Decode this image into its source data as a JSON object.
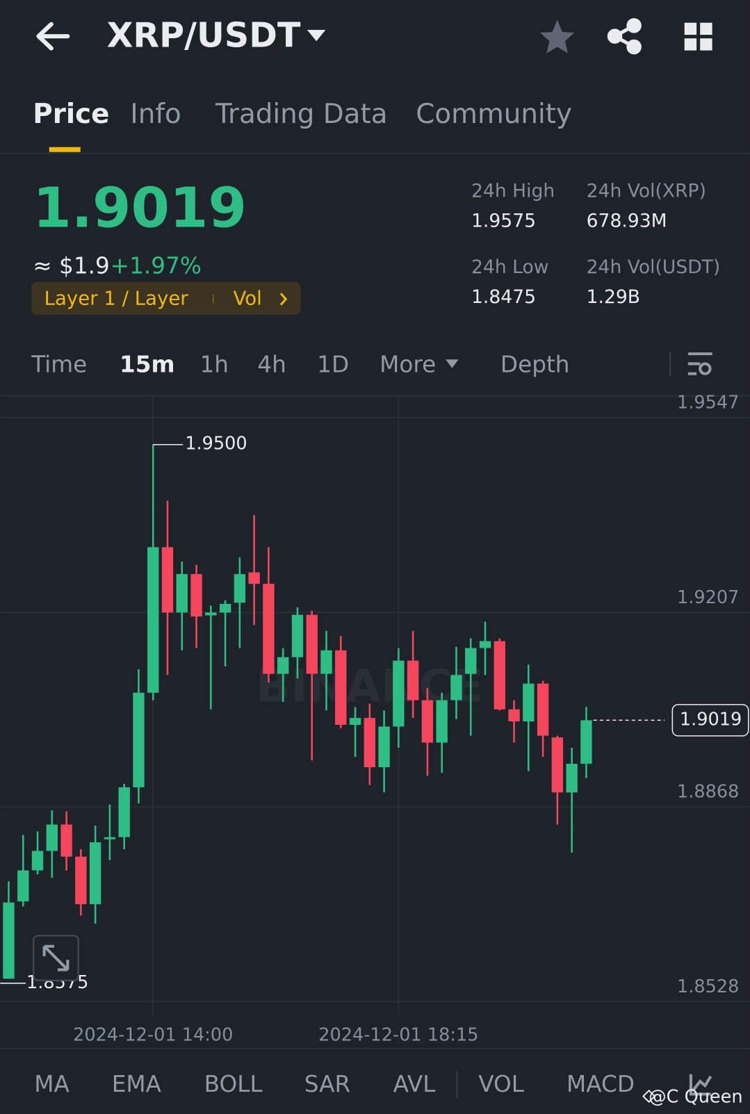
{
  "header": {
    "title": "XRP/USDT"
  },
  "tabs": {
    "items": [
      "Price",
      "Info",
      "Trading Data",
      "Community"
    ],
    "active": 0
  },
  "ticker": {
    "price": "1.9019",
    "approx": "≈ $1.9",
    "change": "+1.97%",
    "tag": "Layer 1 / Layer",
    "tag2": "Vol"
  },
  "stats": [
    {
      "label": "24h High",
      "value": "1.9575"
    },
    {
      "label": "24h Vol(XRP)",
      "value": "678.93M"
    },
    {
      "label": "24h Low",
      "value": "1.8475"
    },
    {
      "label": "24h Vol(USDT)",
      "value": "1.29B"
    }
  ],
  "intervals": {
    "items": [
      "Time",
      "15m",
      "1h",
      "4h",
      "1D",
      "More",
      "Depth"
    ],
    "active": 1
  },
  "chart_data": {
    "type": "candlestick",
    "up_color": "#2ebd85",
    "down_color": "#f6465d",
    "categories": [
      null,
      null,
      null,
      null,
      null,
      null,
      null,
      null,
      null,
      null,
      "2024-12-01 14:00",
      null,
      null,
      null,
      null,
      null,
      null,
      null,
      null,
      null,
      null,
      null,
      null,
      null,
      null,
      null,
      null,
      "2024-12-01 18:15",
      null,
      null,
      null,
      null,
      null,
      null,
      null,
      null,
      null,
      null,
      null,
      null,
      null
    ],
    "open": [
      1.8568,
      1.8703,
      1.8757,
      1.8791,
      1.8837,
      1.8781,
      1.8698,
      1.8812,
      1.8815,
      1.8902,
      1.9067,
      1.9321,
      1.9207,
      1.9274,
      1.9202,
      1.9207,
      1.9224,
      1.9277,
      1.9257,
      1.91,
      1.9129,
      1.9203,
      1.91,
      1.9141,
      1.9011,
      1.9023,
      1.8937,
      1.9008,
      1.9123,
      1.9054,
      1.898,
      1.9054,
      1.91,
      1.9145,
      1.9157,
      1.9038,
      1.9017,
      1.9083,
      1.8989,
      1.8893,
      1.8943
    ],
    "high": [
      1.8738,
      1.8819,
      1.8825,
      1.8862,
      1.886,
      1.8794,
      1.8835,
      1.8872,
      1.8908,
      1.9108,
      1.95,
      1.9402,
      1.9296,
      1.929,
      1.9219,
      1.9228,
      1.9303,
      1.9377,
      1.9321,
      1.9145,
      1.9216,
      1.921,
      1.9175,
      1.9166,
      1.9042,
      1.9048,
      1.9036,
      1.9145,
      1.9175,
      1.9075,
      1.9067,
      1.9147,
      1.9162,
      1.9191,
      1.9162,
      1.9054,
      1.9116,
      1.9088,
      1.8992,
      1.8971,
      1.9042
    ],
    "low": [
      1.8575,
      1.8694,
      1.875,
      1.8744,
      1.8757,
      1.8678,
      1.8664,
      1.8775,
      1.8794,
      1.8874,
      1.9054,
      1.9098,
      1.9141,
      1.9145,
      1.9038,
      1.9113,
      1.9145,
      1.9185,
      1.9085,
      1.9051,
      1.9092,
      1.8949,
      1.9036,
      1.9005,
      1.8955,
      1.8906,
      1.8893,
      1.8971,
      1.9023,
      1.8922,
      1.8927,
      1.9021,
      1.8992,
      1.9098,
      1.9036,
      1.898,
      1.893,
      1.8955,
      1.8837,
      1.8788,
      1.8918
    ],
    "close": [
      1.8701,
      1.8757,
      1.8791,
      1.8837,
      1.8781,
      1.8698,
      1.8806,
      1.8815,
      1.8902,
      1.9067,
      1.9321,
      1.9207,
      1.9274,
      1.92,
      1.9207,
      1.9222,
      1.9274,
      1.9257,
      1.91,
      1.9129,
      1.9203,
      1.91,
      1.9141,
      1.9011,
      1.9023,
      1.8937,
      1.9008,
      1.9123,
      1.9054,
      1.898,
      1.9054,
      1.9098,
      1.9145,
      1.9157,
      1.9038,
      1.9017,
      1.9083,
      1.8992,
      1.8893,
      1.8943,
      1.9019
    ],
    "ylim": [
      1.8503,
      1.9584
    ],
    "yticks": [
      1.9547,
      1.9207,
      1.8868,
      1.8528
    ],
    "high_marker": {
      "value": 1.95,
      "label": "1.9500",
      "index": 10
    },
    "low_marker": {
      "value": 1.8575,
      "label": "1.8575",
      "index": 0
    },
    "last_price": {
      "value": 1.9019,
      "label": "1.9019"
    },
    "watermark": "BINANCE"
  },
  "indicators": [
    "MA",
    "EMA",
    "BOLL",
    "SAR",
    "AVL",
    "VOL",
    "MACD"
  ],
  "credit": "@C Queen"
}
